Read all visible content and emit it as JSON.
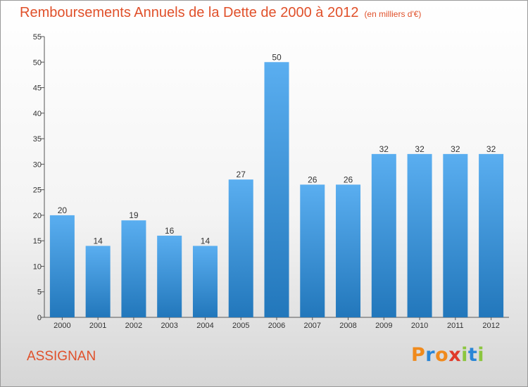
{
  "header": {
    "title": "Remboursements Annuels de la Dette de 2000 à 2012",
    "subtitle": "(en milliers d'€)"
  },
  "footer": {
    "commune": "ASSIGNAN",
    "brand": "Proxiti"
  },
  "colors": {
    "title": "#e0502a",
    "bar_top": "#5aaef0",
    "bar_bottom": "#2277bb",
    "brand_letters": [
      "#f08a1c",
      "#2a86d6",
      "#f08a1c",
      "#e03a2a",
      "#8cc63f",
      "#2a86d6",
      "#8cc63f"
    ]
  },
  "chart_data": {
    "type": "bar",
    "title": "Remboursements Annuels de la Dette de 2000 à 2012",
    "subtitle": "(en milliers d'€)",
    "categories": [
      "2000",
      "2001",
      "2002",
      "2003",
      "2004",
      "2005",
      "2006",
      "2007",
      "2008",
      "2009",
      "2010",
      "2011",
      "2012"
    ],
    "values": [
      20,
      14,
      19,
      16,
      14,
      27,
      50,
      26,
      26,
      32,
      32,
      32,
      32
    ],
    "xlabel": "",
    "ylabel": "",
    "ylim": [
      0,
      55
    ],
    "yticks": [
      0,
      5,
      10,
      15,
      20,
      25,
      30,
      35,
      40,
      45,
      50,
      55
    ],
    "grid": false,
    "legend": "none"
  }
}
